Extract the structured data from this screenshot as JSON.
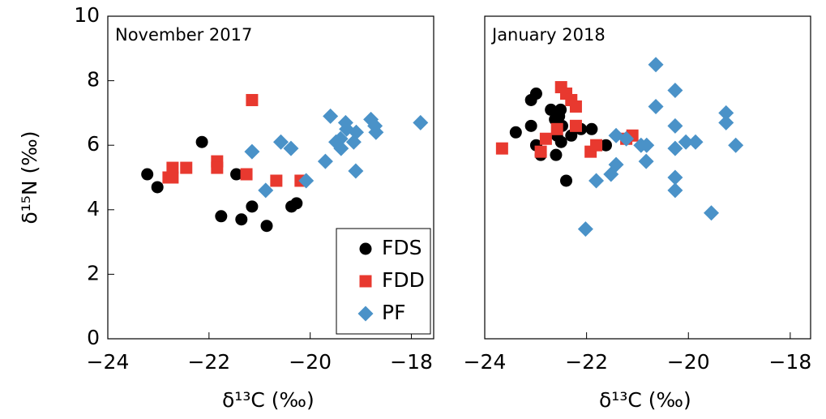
{
  "chart_data": [
    {
      "type": "scatter",
      "title": "November 2017",
      "xlabel": "δ¹³C (‰)",
      "ylabel": "δ¹⁵N (‰)",
      "xlim": [
        -24,
        -17.56
      ],
      "ylim": [
        0,
        10
      ],
      "xticks": [
        {
          "value": -24,
          "label": "−24"
        },
        {
          "value": -22,
          "label": "−22"
        },
        {
          "value": -20,
          "label": "−20"
        },
        {
          "value": -18,
          "label": "−18"
        }
      ],
      "yticks": [
        0,
        2,
        4,
        6,
        8,
        10
      ],
      "legend": "lower right",
      "series": [
        {
          "name": "FDS",
          "color": "#000000",
          "marker": "circle",
          "x": [
            -23.22,
            -23.02,
            -22.14,
            -21.76,
            -21.46,
            -21.36,
            -21.15,
            -20.86,
            -20.37,
            -20.27
          ],
          "values": [
            5.1,
            4.7,
            6.1,
            3.8,
            5.1,
            3.7,
            4.1,
            3.5,
            4.1,
            4.2
          ]
        },
        {
          "name": "FDD",
          "color": "#e8392f",
          "marker": "square",
          "x": [
            -22.8,
            -22.72,
            -22.72,
            -22.45,
            -21.84,
            -21.84,
            -21.26,
            -21.15,
            -20.67,
            -20.19
          ],
          "values": [
            5.0,
            5.3,
            5.0,
            5.3,
            5.5,
            5.3,
            5.1,
            7.4,
            4.9,
            4.9
          ]
        },
        {
          "name": "PF",
          "color": "#4a92c8",
          "marker": "diamond",
          "x": [
            -21.15,
            -20.88,
            -20.58,
            -20.38,
            -20.08,
            -19.7,
            -19.6,
            -19.49,
            -19.4,
            -19.39,
            -19.3,
            -19.28,
            -19.14,
            -19.1,
            -19.09,
            -18.8,
            -18.72,
            -18.7,
            -17.82
          ],
          "values": [
            5.8,
            4.6,
            6.1,
            5.9,
            4.9,
            5.5,
            6.9,
            6.1,
            6.2,
            5.9,
            6.7,
            6.5,
            6.1,
            5.2,
            6.4,
            6.8,
            6.6,
            6.4,
            6.7
          ]
        }
      ]
    },
    {
      "type": "scatter",
      "title": "January 2018",
      "xlabel": "δ¹³C (‰)",
      "xlim": [
        -24,
        -17.6
      ],
      "ylim": [
        0,
        10
      ],
      "xticks": [
        {
          "value": -24,
          "label": "−24"
        },
        {
          "value": -22,
          "label": "−22"
        },
        {
          "value": -20,
          "label": "−20"
        },
        {
          "value": -18,
          "label": "−18"
        }
      ],
      "series": [
        {
          "color": "#000000",
          "marker": "circle",
          "x": [
            -23.39,
            -23.09,
            -22.99,
            -23.09,
            -22.99,
            -22.9,
            -22.7,
            -22.62,
            -22.58,
            -22.54,
            -22.51,
            -22.6,
            -22.5,
            -22.48,
            -22.4,
            -22.3,
            -22.11,
            -21.9,
            -21.62
          ],
          "values": [
            6.4,
            7.4,
            7.6,
            6.6,
            6.0,
            5.7,
            7.1,
            6.8,
            6.3,
            6.9,
            7.1,
            5.7,
            6.1,
            6.6,
            4.9,
            6.3,
            6.5,
            6.5,
            6.0
          ]
        },
        {
          "color": "#e8392f",
          "marker": "square",
          "x": [
            -23.66,
            -22.9,
            -22.8,
            -22.58,
            -22.5,
            -22.4,
            -22.3,
            -22.21,
            -22.21,
            -21.92,
            -21.81,
            -21.22,
            -21.1
          ],
          "values": [
            5.9,
            5.8,
            6.2,
            6.5,
            7.8,
            7.6,
            7.4,
            7.2,
            6.6,
            5.8,
            6.0,
            6.2,
            6.3
          ]
        },
        {
          "color": "#4a92c8",
          "marker": "diamond",
          "x": [
            -22.02,
            -21.81,
            -21.52,
            -21.42,
            -21.42,
            -21.22,
            -20.93,
            -20.82,
            -20.83,
            -20.64,
            -20.64,
            -20.26,
            -20.26,
            -20.26,
            -20.26,
            -20.26,
            -20.05,
            -19.86,
            -19.55,
            -19.26,
            -19.26,
            -19.07
          ],
          "values": [
            3.4,
            4.9,
            5.1,
            5.4,
            6.3,
            6.2,
            6.0,
            6.0,
            5.5,
            8.5,
            7.2,
            7.7,
            6.6,
            5.9,
            5.0,
            4.6,
            6.1,
            6.1,
            3.9,
            7.0,
            6.7,
            6.0
          ]
        }
      ]
    }
  ]
}
